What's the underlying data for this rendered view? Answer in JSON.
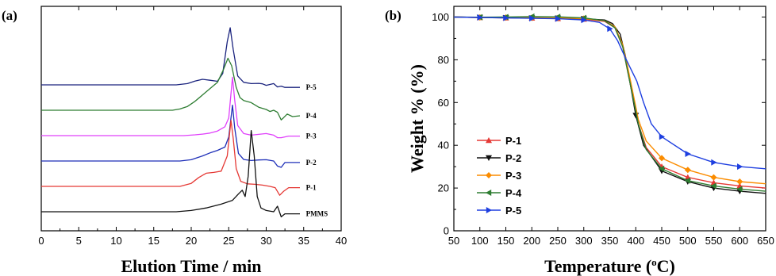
{
  "panel_labels": {
    "a": "(a)",
    "b": "(b)"
  },
  "chart_data": [
    {
      "type": "line",
      "panel": "(a)",
      "xlabel": "Elution Time / min",
      "ylabel": "",
      "xlim": [
        0,
        40
      ],
      "xticks": [
        0,
        5,
        10,
        15,
        20,
        25,
        30,
        35,
        40
      ],
      "y_ticks_shown": false,
      "grid": false,
      "legend": "none",
      "trace_end_labels": [
        "P-5",
        "P-4",
        "P-3",
        "P-2",
        "P-1",
        "PMMS"
      ],
      "series": [
        {
          "name": "P-5",
          "color": "#1a237e",
          "offset": 5,
          "x": [
            0,
            18,
            19.5,
            20.5,
            21.5,
            22.5,
            23.5,
            24.2,
            24.8,
            25.2,
            25.6,
            26.2,
            27,
            28,
            29,
            29.5,
            30,
            31,
            31.5,
            32,
            32.5,
            33,
            34.5
          ],
          "y": [
            0,
            0,
            0.05,
            0.15,
            0.22,
            0.18,
            0.14,
            0.45,
            1.7,
            2.25,
            1.4,
            0.35,
            0.1,
            0.05,
            0.06,
            0.04,
            -0.02,
            0.05,
            -0.08,
            -0.05,
            -0.1,
            -0.1,
            -0.1
          ]
        },
        {
          "name": "P-4",
          "color": "#2e7d32",
          "offset": 4,
          "x": [
            0,
            17.5,
            18.5,
            19.5,
            20.5,
            21.5,
            22.5,
            23.5,
            24.3,
            24.9,
            25.4,
            26,
            26.5,
            27,
            28,
            29,
            30,
            30.5,
            31,
            31.5,
            32,
            32.3,
            32.8,
            33.5,
            34.5
          ],
          "y": [
            0,
            0,
            0.05,
            0.15,
            0.35,
            0.6,
            0.85,
            1.1,
            1.6,
            2.05,
            1.75,
            0.9,
            0.5,
            0.38,
            0.3,
            0.12,
            0.03,
            -0.05,
            0.0,
            -0.08,
            -0.38,
            -0.3,
            -0.15,
            -0.25,
            -0.22
          ]
        },
        {
          "name": "P-3",
          "color": "#e040fb",
          "offset": 3,
          "x": [
            0,
            19,
            20.5,
            21.5,
            22.5,
            23.5,
            24.5,
            25,
            25.5,
            25.8,
            26.2,
            27,
            28,
            29,
            30,
            31,
            31.5,
            32,
            33,
            34.5
          ],
          "y": [
            0,
            0,
            0.03,
            0.06,
            0.1,
            0.18,
            0.35,
            0.7,
            2.3,
            1.4,
            0.4,
            0.08,
            0.02,
            0.05,
            0.08,
            0.02,
            -0.08,
            -0.08,
            -0.02,
            -0.02
          ]
        },
        {
          "name": "P-2",
          "color": "#1e2fb8",
          "offset": 2,
          "x": [
            0,
            18.5,
            20,
            21.5,
            22.5,
            23.5,
            24.5,
            25,
            25.5,
            25.8,
            26.3,
            27,
            28,
            29,
            30,
            31,
            31.5,
            32,
            32.5,
            33,
            34.5
          ],
          "y": [
            0,
            0,
            0.05,
            0.2,
            0.32,
            0.42,
            0.55,
            0.95,
            2.2,
            1.3,
            0.3,
            0.06,
            0.02,
            0.04,
            0.05,
            0.0,
            -0.2,
            -0.25,
            -0.06,
            -0.06,
            -0.06
          ]
        },
        {
          "name": "P-1",
          "color": "#e53935",
          "offset": 1,
          "x": [
            0,
            18.5,
            20,
            21,
            22,
            23,
            24,
            24.8,
            25.3,
            25.6,
            26,
            26.6,
            27.5,
            28.5,
            29.5,
            30.5,
            31.2,
            31.8,
            32.3,
            33,
            34.5
          ],
          "y": [
            0,
            0,
            0.12,
            0.35,
            0.52,
            0.55,
            0.6,
            1.2,
            2.6,
            1.9,
            0.7,
            0.2,
            0.1,
            0.08,
            0.05,
            0.0,
            -0.05,
            -0.35,
            -0.2,
            -0.05,
            -0.05
          ]
        },
        {
          "name": "PMMS",
          "color": "#111111",
          "offset": 0,
          "x": [
            0,
            18,
            20,
            22,
            24,
            25.5,
            26.3,
            26.8,
            27.2,
            27.6,
            28,
            28.4,
            28.8,
            29.3,
            30,
            31,
            31.5,
            32,
            32.5,
            33,
            34.5
          ],
          "y": [
            0,
            0,
            0.05,
            0.15,
            0.3,
            0.45,
            0.7,
            0.85,
            0.6,
            1.4,
            3.2,
            2.2,
            0.6,
            0.15,
            0.05,
            0.0,
            0.22,
            -0.2,
            -0.08,
            -0.08,
            -0.08
          ]
        }
      ]
    },
    {
      "type": "line",
      "panel": "(b)",
      "xlabel": "Temperature (",
      "xlabel_sup": "o",
      "xlabel_tail": "C)",
      "ylabel": "Weight % (%)",
      "xlim": [
        50,
        650
      ],
      "ylim": [
        0,
        105
      ],
      "xticks": [
        50,
        100,
        150,
        200,
        250,
        300,
        350,
        400,
        450,
        500,
        550,
        600,
        650
      ],
      "yticks": [
        0,
        20,
        40,
        60,
        80,
        100
      ],
      "grid": false,
      "legend": "lower-left",
      "series": [
        {
          "name": "P-1",
          "color": "#e53935",
          "marker": "triangle-up",
          "x": [
            50,
            100,
            150,
            200,
            250,
            300,
            340,
            360,
            375,
            385,
            395,
            405,
            420,
            450,
            500,
            550,
            600,
            650
          ],
          "y": [
            100,
            99.8,
            99.6,
            99.5,
            99.3,
            99.0,
            98.0,
            95.0,
            86.0,
            74.0,
            62.0,
            50.0,
            39.0,
            30.0,
            25.0,
            22.5,
            21.0,
            20.0
          ]
        },
        {
          "name": "P-2",
          "color": "#111111",
          "marker": "triangle-down",
          "x": [
            50,
            100,
            150,
            200,
            250,
            300,
            340,
            355,
            370,
            380,
            390,
            400,
            415,
            450,
            500,
            550,
            600,
            650
          ],
          "y": [
            100,
            99.8,
            99.7,
            99.6,
            99.5,
            99.2,
            98.6,
            97.0,
            92.0,
            82.0,
            68.0,
            54.0,
            40.0,
            28.0,
            23.0,
            20.0,
            18.5,
            17.5
          ]
        },
        {
          "name": "P-3",
          "color": "#fb8c00",
          "marker": "diamond",
          "x": [
            50,
            100,
            150,
            200,
            250,
            300,
            340,
            360,
            375,
            385,
            395,
            405,
            420,
            450,
            500,
            550,
            600,
            650
          ],
          "y": [
            100,
            99.8,
            99.8,
            99.7,
            99.6,
            99.3,
            98.3,
            95.5,
            87.0,
            76.0,
            64.0,
            52.0,
            42.0,
            34.0,
            28.5,
            25.0,
            23.0,
            22.0
          ]
        },
        {
          "name": "P-4",
          "color": "#2e7d32",
          "marker": "triangle-left",
          "x": [
            50,
            100,
            150,
            200,
            250,
            300,
            340,
            360,
            375,
            385,
            395,
            405,
            420,
            450,
            500,
            550,
            600,
            650
          ],
          "y": [
            100,
            99.9,
            100.0,
            100.2,
            100.1,
            99.6,
            98.3,
            95.0,
            86.0,
            74.0,
            62.0,
            50.0,
            38.0,
            29.0,
            23.5,
            21.0,
            19.5,
            18.5
          ]
        },
        {
          "name": "P-5",
          "color": "#1e3fe0",
          "marker": "triangle-right",
          "x": [
            50,
            100,
            150,
            200,
            250,
            300,
            330,
            350,
            365,
            380,
            392,
            402,
            415,
            430,
            450,
            500,
            550,
            600,
            650
          ],
          "y": [
            100,
            99.8,
            99.6,
            99.4,
            99.2,
            98.6,
            97.5,
            94.5,
            89.0,
            81.0,
            75.0,
            70.0,
            60.0,
            50.0,
            44.0,
            36.0,
            32.0,
            30.0,
            29.0
          ]
        }
      ]
    }
  ]
}
